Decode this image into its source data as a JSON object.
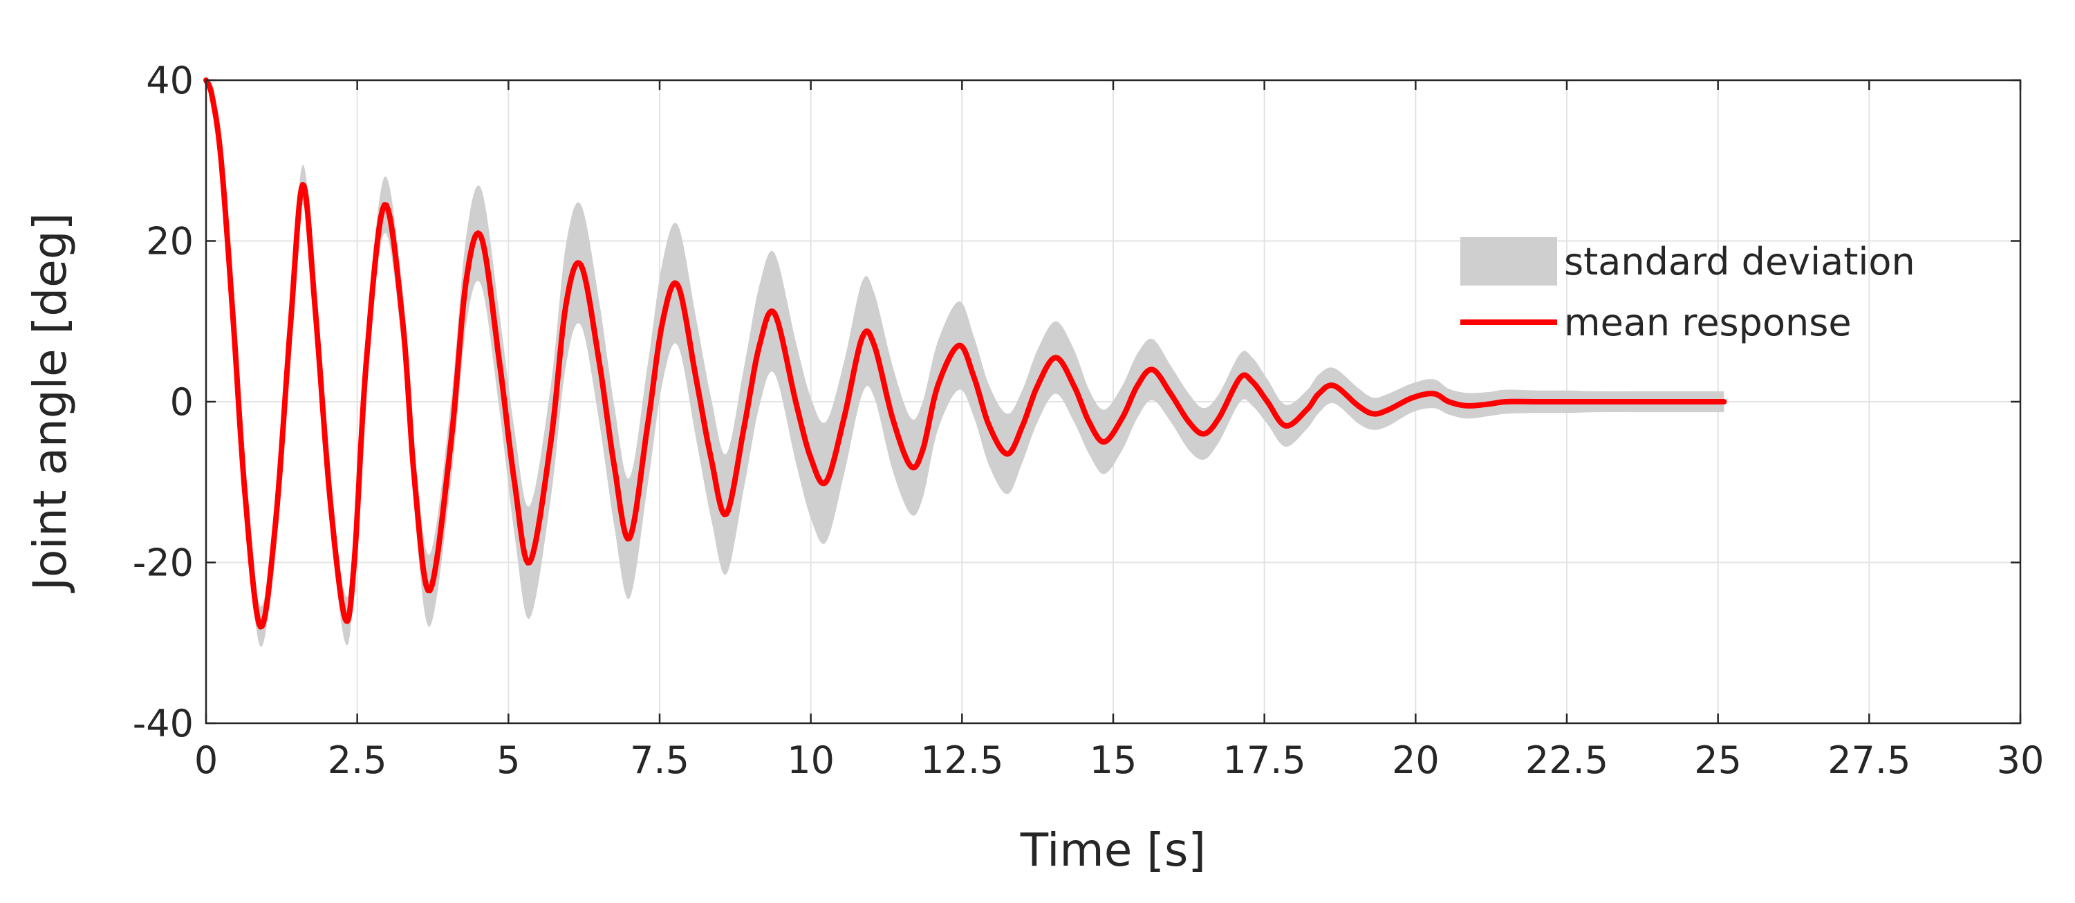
{
  "chart_data": {
    "type": "line",
    "title": "",
    "xlabel": "Time [s]",
    "ylabel": "Joint angle [deg]",
    "xlim": [
      0,
      30
    ],
    "ylim": [
      -40,
      40
    ],
    "xticks": [
      0,
      2.5,
      5,
      7.5,
      10,
      12.5,
      15,
      17.5,
      20,
      22.5,
      25,
      27.5,
      30
    ],
    "xtick_labels": [
      "0",
      "2.5",
      "5",
      "7.5",
      "10",
      "12.5",
      "15",
      "17.5",
      "20",
      "22.5",
      "25",
      "27.5",
      "30"
    ],
    "yticks": [
      40,
      20,
      0,
      -20,
      -40
    ],
    "ytick_labels": [
      "40",
      "20",
      "0",
      "-20",
      "-40"
    ],
    "grid": true,
    "legend_position": "upper-right",
    "series": [
      {
        "name": "mean response",
        "kind": "line",
        "color": "#ff0000",
        "x": [
          0,
          0.1,
          0.25,
          0.45,
          0.65,
          0.9,
          1.15,
          1.4,
          1.6,
          1.8,
          2.05,
          2.3,
          2.45,
          2.65,
          2.95,
          3.25,
          3.45,
          3.7,
          4.05,
          4.3,
          4.55,
          4.85,
          5.1,
          5.35,
          5.7,
          5.95,
          6.2,
          6.5,
          6.75,
          7.0,
          7.3,
          7.55,
          7.8,
          8.1,
          8.35,
          8.6,
          8.9,
          9.15,
          9.4,
          9.75,
          10.0,
          10.25,
          10.55,
          10.85,
          11.05,
          11.35,
          11.65,
          11.85,
          12.1,
          12.45,
          12.7,
          12.95,
          13.25,
          13.5,
          13.75,
          14.05,
          14.35,
          14.6,
          14.85,
          15.15,
          15.4,
          15.65,
          15.95,
          16.25,
          16.5,
          16.75,
          17.1,
          17.3,
          17.55,
          17.85,
          18.2,
          18.4,
          18.65,
          19.05,
          19.3,
          19.55,
          19.95,
          20.3,
          20.55,
          20.85,
          21.2,
          21.5,
          22.0,
          22.5,
          23.0,
          24.0,
          25.1
        ],
        "y": [
          40,
          38,
          30,
          10,
          -12,
          -28,
          -15,
          10,
          27,
          12,
          -12,
          -27,
          -20,
          5,
          24.5,
          10,
          -10,
          -23.5,
          -5,
          15,
          20.5,
          5,
          -10,
          -20,
          -5,
          12,
          17,
          5,
          -8,
          -17,
          -3,
          10,
          14.5,
          3,
          -7,
          -14,
          -3,
          7,
          11,
          0,
          -7,
          -10,
          -2,
          8,
          7,
          -2,
          -8,
          -6,
          2,
          7,
          3,
          -3,
          -6.5,
          -3,
          2,
          5.5,
          2,
          -2.5,
          -5,
          -2,
          2,
          4,
          1,
          -2.5,
          -4,
          -2,
          3,
          2.5,
          0,
          -3,
          -1,
          1,
          2,
          -0.5,
          -1.5,
          -1,
          0.5,
          1,
          0,
          -0.5,
          -0.3,
          0,
          0,
          0,
          0,
          0,
          0
        ]
      },
      {
        "name": "standard deviation",
        "kind": "band",
        "color": "#cfcfcf",
        "x": [
          0,
          0.1,
          0.25,
          0.45,
          0.65,
          0.9,
          1.15,
          1.4,
          1.6,
          1.8,
          2.05,
          2.3,
          2.45,
          2.65,
          2.95,
          3.25,
          3.45,
          3.7,
          4.05,
          4.3,
          4.55,
          4.85,
          5.1,
          5.35,
          5.7,
          5.95,
          6.2,
          6.5,
          6.75,
          7.0,
          7.3,
          7.55,
          7.8,
          8.1,
          8.35,
          8.6,
          8.9,
          9.15,
          9.4,
          9.75,
          10.0,
          10.25,
          10.55,
          10.85,
          11.05,
          11.35,
          11.65,
          11.85,
          12.1,
          12.45,
          12.7,
          12.95,
          13.25,
          13.5,
          13.75,
          14.05,
          14.35,
          14.6,
          14.85,
          15.15,
          15.4,
          15.65,
          15.95,
          16.25,
          16.5,
          16.75,
          17.1,
          17.3,
          17.55,
          17.85,
          18.2,
          18.4,
          18.65,
          19.05,
          19.3,
          19.55,
          19.95,
          20.3,
          20.55,
          20.85,
          21.2,
          21.5,
          22.0,
          22.5,
          23.0,
          24.0,
          25.1
        ],
        "std": [
          0.5,
          0.5,
          1,
          1.5,
          2,
          2.5,
          2.5,
          2.5,
          2.5,
          2.5,
          2.8,
          3,
          3,
          3,
          3.5,
          3.8,
          4,
          4.5,
          5,
          5.5,
          6,
          6,
          6.5,
          7,
          7,
          7.5,
          7.5,
          7.5,
          7.5,
          7.5,
          7.5,
          7.5,
          7.5,
          7.5,
          7.5,
          7.5,
          7.5,
          7.5,
          7.5,
          7.5,
          7.5,
          7.5,
          7,
          7,
          6.5,
          6.5,
          6,
          6,
          5.5,
          5.5,
          5,
          5,
          5,
          4.5,
          4.5,
          4.5,
          4.5,
          4,
          4,
          4,
          4,
          3.8,
          3.5,
          3.5,
          3.2,
          3,
          3,
          3,
          2.8,
          2.6,
          2.4,
          2.4,
          2.2,
          2.2,
          2,
          2,
          1.8,
          1.8,
          1.6,
          1.6,
          1.5,
          1.5,
          1.4,
          1.4,
          1.3,
          1.3,
          1.3
        ]
      }
    ],
    "legend": [
      {
        "label": "standard deviation",
        "kind": "band",
        "color": "#cfcfcf"
      },
      {
        "label": "mean response",
        "kind": "line",
        "color": "#ff0000"
      }
    ]
  }
}
